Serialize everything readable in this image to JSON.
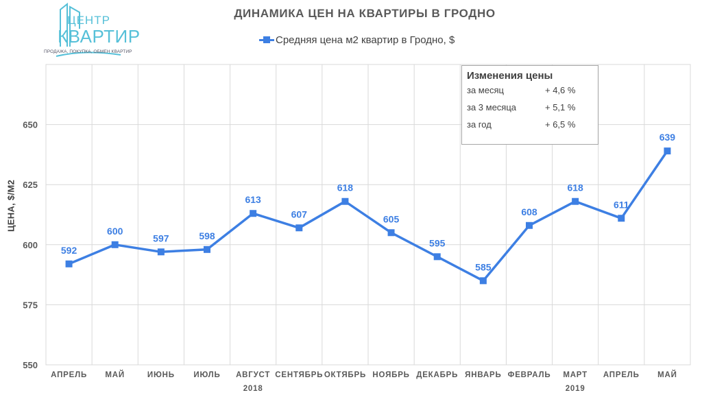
{
  "logo": {
    "brand_line1": "ЦЕНТР",
    "brand_line2": "КВАРТИР",
    "tagline": "ПРОДАЖА, ПОКУПКА, ОБМЕН КВАРТИР"
  },
  "colors": {
    "series": "#3d7fe3",
    "grid": "#d9d9d9",
    "text": "#595959",
    "logo": "#56c0d8"
  },
  "chart_data": {
    "type": "line",
    "title": "ДИНАМИКА ЦЕН НА КВАРТИРЫ В ГРОДНО",
    "ylabel": "ЦЕНА, $/М2",
    "ylim": [
      550,
      675
    ],
    "yticks": [
      550,
      575,
      600,
      625,
      650
    ],
    "grid": true,
    "legend_position": "top",
    "categories": [
      "АПРЕЛЬ",
      "МАЙ",
      "ИЮНЬ",
      "ИЮЛЬ",
      "АВГУСТ",
      "СЕНТЯБРЬ",
      "ОКТЯБРЬ",
      "НОЯБРЬ",
      "ДЕКАБРЬ",
      "ЯНВАРЬ",
      "ФЕВРАЛЬ",
      "МАРТ",
      "АПРЕЛЬ",
      "МАЙ"
    ],
    "year_labels": [
      {
        "text": "2018",
        "category_index": 4
      },
      {
        "text": "2019",
        "category_index": 11
      }
    ],
    "series": [
      {
        "name": "Средняя цена м2 квартир в Гродно, $",
        "values": [
          592,
          600,
          597,
          598,
          613,
          607,
          618,
          605,
          595,
          585,
          608,
          618,
          611,
          639
        ]
      }
    ]
  },
  "price_change_box": {
    "title": "Изменения цены",
    "rows": [
      {
        "label": "за месяц",
        "value": "+ 4,6 %"
      },
      {
        "label": "за 3 месяца",
        "value": "+ 5,1 %"
      },
      {
        "label": "за год",
        "value": "+ 6,5 %"
      }
    ]
  }
}
